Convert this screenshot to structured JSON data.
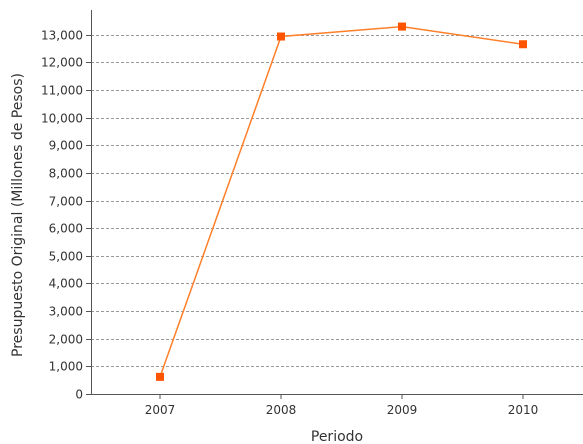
{
  "chart_data": {
    "type": "line",
    "categories": [
      "2007",
      "2008",
      "2009",
      "2010"
    ],
    "series": [
      {
        "values": [
          620,
          12940,
          13300,
          12660
        ]
      }
    ],
    "xlabel": "Periodo",
    "ylabel": "Presupuesto Original (Millones de Pesos)",
    "ylim": [
      0,
      13900
    ],
    "yticks": [
      0,
      1000,
      2000,
      3000,
      4000,
      5000,
      6000,
      7000,
      8000,
      9000,
      10000,
      11000,
      12000,
      13000
    ],
    "ytick_labels": [
      "0",
      "1,000",
      "2,000",
      "3,000",
      "4,000",
      "5,000",
      "6,000",
      "7,000",
      "8,000",
      "9,000",
      "10,000",
      "11,000",
      "12,000",
      "13,000"
    ],
    "grid": "horizontal dashed",
    "legend": "none",
    "colors": {
      "series": "#ff7f2a",
      "marker": "#ff5500",
      "grid": "#999999",
      "axis": "#555555"
    }
  }
}
